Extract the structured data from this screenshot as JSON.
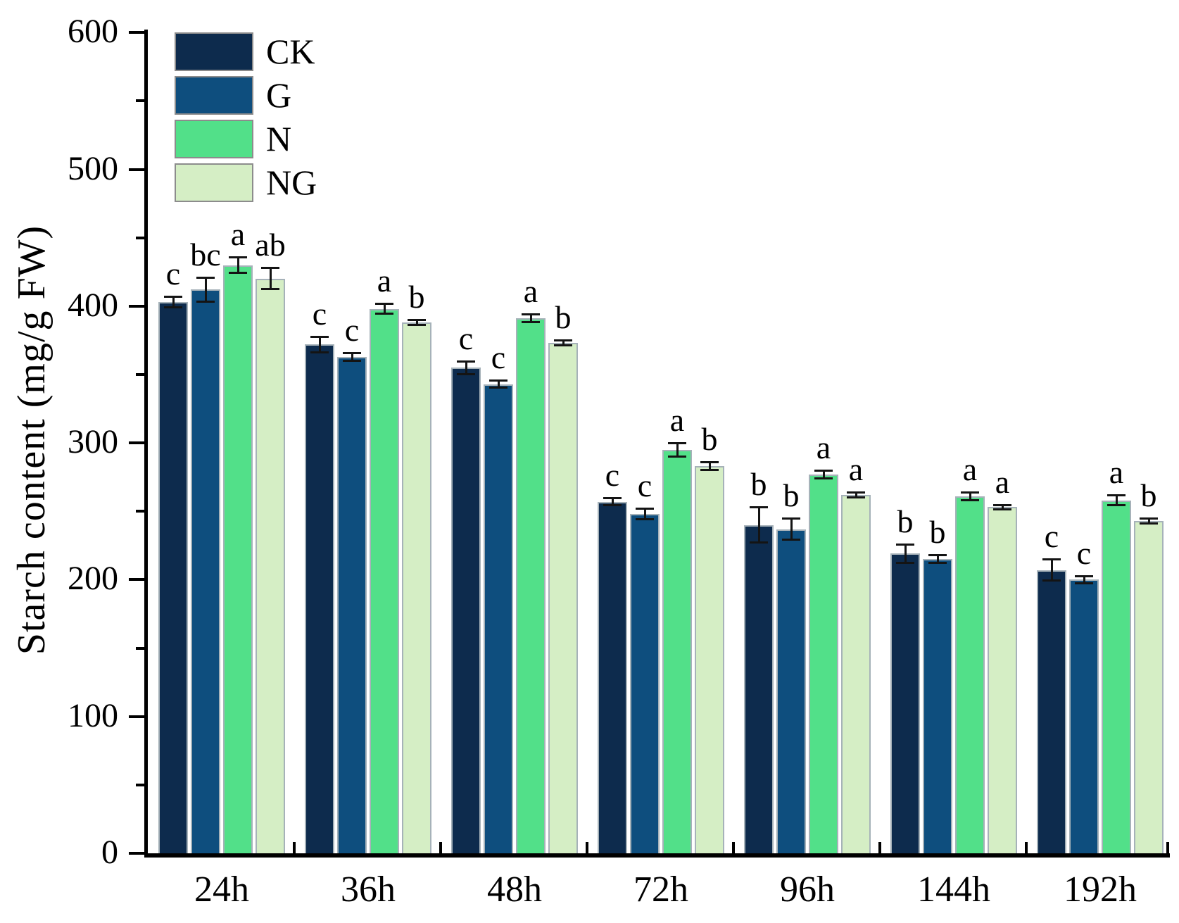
{
  "chart_data": {
    "type": "bar",
    "title": "",
    "xlabel": "",
    "ylabel": "Starch content (mg/g FW)",
    "ylim": [
      0,
      600
    ],
    "ytick_step": 100,
    "ytick_minor_step": 50,
    "grid": false,
    "legend_position": "top-left-inside",
    "categories": [
      "24h",
      "36h",
      "48h",
      "72h",
      "96h",
      "144h",
      "192h"
    ],
    "yticks": [
      0,
      100,
      200,
      300,
      400,
      500,
      600
    ],
    "series": [
      {
        "name": "CK",
        "color": "#0d2b4d",
        "values": [
          403,
          372,
          355,
          257,
          240,
          219,
          207
        ],
        "errors": [
          4,
          6,
          5,
          3,
          13,
          7,
          8
        ],
        "letters": [
          "c",
          "c",
          "c",
          "c",
          "b",
          "b",
          "c"
        ]
      },
      {
        "name": "G",
        "color": "#0e4e7e",
        "values": [
          412,
          363,
          343,
          248,
          237,
          215,
          200
        ],
        "errors": [
          9,
          3,
          3,
          4,
          8,
          3,
          3
        ],
        "letters": [
          "bc",
          "c",
          "c",
          "c",
          "b",
          "b",
          "c"
        ]
      },
      {
        "name": "N",
        "color": "#52e089",
        "values": [
          430,
          398,
          391,
          295,
          277,
          261,
          258
        ],
        "errors": [
          6,
          4,
          3,
          5,
          3,
          3,
          4
        ],
        "letters": [
          "a",
          "a",
          "a",
          "a",
          "a",
          "a",
          "a"
        ]
      },
      {
        "name": "NG",
        "color": "#d5eec5",
        "values": [
          420,
          388,
          373,
          283,
          262,
          253,
          243
        ],
        "errors": [
          8,
          2,
          2,
          3,
          2,
          2,
          2
        ],
        "letters": [
          "ab",
          "b",
          "b",
          "b",
          "a",
          "a",
          "b"
        ]
      }
    ],
    "axis_color": "#000000",
    "error_bar_color": "#141414"
  }
}
